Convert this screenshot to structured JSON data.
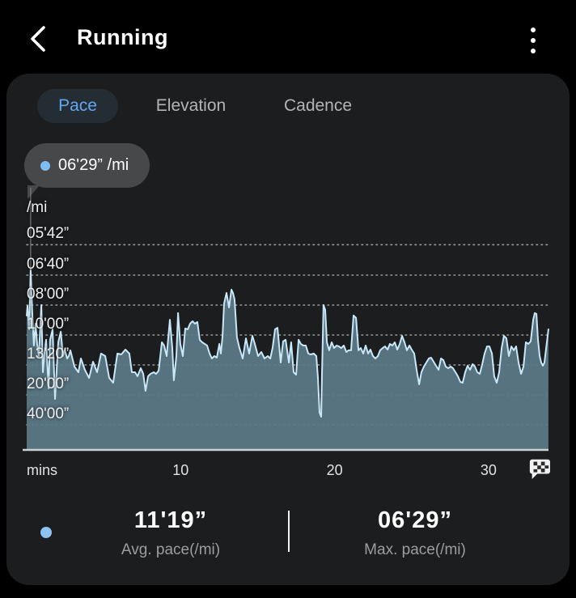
{
  "header": {
    "title": "Running"
  },
  "tabs": [
    {
      "label": "Pace",
      "active": true
    },
    {
      "label": "Elevation",
      "active": false
    },
    {
      "label": "Cadence",
      "active": false
    }
  ],
  "tooltip": {
    "value": "06'29” /mi"
  },
  "chart_data": {
    "type": "area",
    "title": "Pace over workout time",
    "ylabel": "/mi",
    "xlabel": "mins",
    "legend_position": "none",
    "grid": "dotted-horizontal",
    "x_range_minutes": [
      0,
      33.9
    ],
    "x_ticks": [
      {
        "label": "10",
        "minute": 10
      },
      {
        "label": "20",
        "minute": 20
      },
      {
        "label": "30",
        "minute": 30
      }
    ],
    "y_ticks": [
      {
        "label": "05'42”",
        "pace_s": 342
      },
      {
        "label": "06'40”",
        "pace_s": 400
      },
      {
        "label": "08'00”",
        "pace_s": 480
      },
      {
        "label": "10'00”",
        "pace_s": 600
      },
      {
        "label": "13'20”",
        "pace_s": 800
      },
      {
        "label": "20'00”",
        "pace_s": 1200
      },
      {
        "label": "40'00”",
        "pace_s": 2400
      }
    ],
    "points": [
      [
        0.0,
        516
      ],
      [
        0.05,
        483
      ],
      [
        0.16,
        573
      ],
      [
        0.26,
        388
      ],
      [
        0.37,
        516
      ],
      [
        0.47,
        658
      ],
      [
        0.58,
        548
      ],
      [
        0.68,
        648
      ],
      [
        0.79,
        728
      ],
      [
        0.95,
        480
      ],
      [
        1.05,
        871
      ],
      [
        1.16,
        699
      ],
      [
        1.26,
        625
      ],
      [
        1.42,
        1083
      ],
      [
        1.52,
        625
      ],
      [
        1.68,
        573
      ],
      [
        1.84,
        1287
      ],
      [
        1.94,
        871
      ],
      [
        2.05,
        639
      ],
      [
        2.21,
        584
      ],
      [
        2.36,
        728
      ],
      [
        2.47,
        683
      ],
      [
        2.63,
        746
      ],
      [
        2.73,
        728
      ],
      [
        2.84,
        688
      ],
      [
        3.1,
        815
      ],
      [
        3.36,
        871
      ],
      [
        3.52,
        746
      ],
      [
        3.78,
        846
      ],
      [
        4.05,
        935
      ],
      [
        4.31,
        772
      ],
      [
        4.57,
        871
      ],
      [
        4.83,
        710
      ],
      [
        5.1,
        728
      ],
      [
        5.36,
        935
      ],
      [
        5.62,
        998
      ],
      [
        5.89,
        710
      ],
      [
        6.15,
        716
      ],
      [
        6.41,
        683
      ],
      [
        6.67,
        710
      ],
      [
        6.83,
        871
      ],
      [
        7.04,
        871
      ],
      [
        7.2,
        915
      ],
      [
        7.41,
        830
      ],
      [
        7.57,
        888
      ],
      [
        7.72,
        1124
      ],
      [
        7.88,
        915
      ],
      [
        8.04,
        888
      ],
      [
        8.25,
        871
      ],
      [
        8.41,
        888
      ],
      [
        8.57,
        854
      ],
      [
        8.78,
        639
      ],
      [
        8.93,
        658
      ],
      [
        9.09,
        728
      ],
      [
        9.3,
        532
      ],
      [
        9.46,
        673
      ],
      [
        9.56,
        965
      ],
      [
        9.72,
        728
      ],
      [
        9.83,
        507
      ],
      [
        9.98,
        648
      ],
      [
        10.14,
        728
      ],
      [
        10.3,
        569
      ],
      [
        10.46,
        573
      ],
      [
        10.61,
        548
      ],
      [
        10.77,
        538
      ],
      [
        10.93,
        548
      ],
      [
        11.09,
        541
      ],
      [
        11.24,
        625
      ],
      [
        11.4,
        639
      ],
      [
        11.56,
        648
      ],
      [
        11.72,
        658
      ],
      [
        11.88,
        710
      ],
      [
        12.03,
        746
      ],
      [
        12.19,
        728
      ],
      [
        12.35,
        740
      ],
      [
        12.51,
        648
      ],
      [
        12.61,
        710
      ],
      [
        12.72,
        604
      ],
      [
        12.82,
        475
      ],
      [
        12.98,
        444
      ],
      [
        13.14,
        488
      ],
      [
        13.3,
        435
      ],
      [
        13.4,
        444
      ],
      [
        13.5,
        462
      ],
      [
        13.66,
        612
      ],
      [
        13.82,
        673
      ],
      [
        14.03,
        746
      ],
      [
        14.24,
        617
      ],
      [
        14.45,
        710
      ],
      [
        14.66,
        604
      ],
      [
        14.82,
        648
      ],
      [
        15.03,
        728
      ],
      [
        15.24,
        699
      ],
      [
        15.45,
        746
      ],
      [
        15.66,
        728
      ],
      [
        15.82,
        746
      ],
      [
        15.97,
        673
      ],
      [
        16.13,
        573
      ],
      [
        16.29,
        566
      ],
      [
        16.5,
        779
      ],
      [
        16.66,
        634
      ],
      [
        16.82,
        625
      ],
      [
        17.03,
        779
      ],
      [
        17.18,
        639
      ],
      [
        17.34,
        871
      ],
      [
        17.5,
        897
      ],
      [
        17.66,
        625
      ],
      [
        17.81,
        648
      ],
      [
        17.97,
        658
      ],
      [
        18.13,
        658
      ],
      [
        18.29,
        710
      ],
      [
        18.44,
        716
      ],
      [
        18.65,
        710
      ],
      [
        18.81,
        728
      ],
      [
        18.92,
        935
      ],
      [
        19.02,
        1707
      ],
      [
        19.13,
        1889
      ],
      [
        19.18,
        897
      ],
      [
        19.28,
        480
      ],
      [
        19.39,
        496
      ],
      [
        19.5,
        639
      ],
      [
        19.65,
        688
      ],
      [
        19.81,
        639
      ],
      [
        19.97,
        673
      ],
      [
        20.13,
        658
      ],
      [
        20.28,
        663
      ],
      [
        20.44,
        673
      ],
      [
        20.6,
        658
      ],
      [
        20.76,
        699
      ],
      [
        20.91,
        688
      ],
      [
        21.07,
        688
      ],
      [
        21.23,
        516
      ],
      [
        21.39,
        525
      ],
      [
        21.55,
        688
      ],
      [
        21.7,
        673
      ],
      [
        21.86,
        710
      ],
      [
        22.02,
        658
      ],
      [
        22.18,
        710
      ],
      [
        22.33,
        683
      ],
      [
        22.49,
        728
      ],
      [
        22.65,
        746
      ],
      [
        22.81,
        728
      ],
      [
        22.96,
        688
      ],
      [
        23.12,
        673
      ],
      [
        23.28,
        663
      ],
      [
        23.44,
        683
      ],
      [
        23.59,
        648
      ],
      [
        23.75,
        658
      ],
      [
        23.91,
        639
      ],
      [
        24.07,
        683
      ],
      [
        24.23,
        648
      ],
      [
        24.38,
        604
      ],
      [
        24.54,
        639
      ],
      [
        24.7,
        688
      ],
      [
        24.86,
        658
      ],
      [
        25.01,
        683
      ],
      [
        25.17,
        710
      ],
      [
        25.33,
        846
      ],
      [
        25.49,
        1021
      ],
      [
        25.64,
        871
      ],
      [
        25.8,
        815
      ],
      [
        25.96,
        779
      ],
      [
        26.12,
        746
      ],
      [
        26.27,
        740
      ],
      [
        26.43,
        772
      ],
      [
        26.59,
        807
      ],
      [
        26.75,
        846
      ],
      [
        26.91,
        746
      ],
      [
        27.06,
        759
      ],
      [
        27.22,
        815
      ],
      [
        27.38,
        830
      ],
      [
        27.54,
        815
      ],
      [
        27.69,
        830
      ],
      [
        27.85,
        871
      ],
      [
        28.01,
        915
      ],
      [
        28.17,
        987
      ],
      [
        28.32,
        998
      ],
      [
        28.48,
        871
      ],
      [
        28.64,
        807
      ],
      [
        28.8,
        846
      ],
      [
        28.96,
        793
      ],
      [
        29.11,
        815
      ],
      [
        29.27,
        871
      ],
      [
        29.43,
        888
      ],
      [
        29.59,
        793
      ],
      [
        29.74,
        710
      ],
      [
        29.9,
        663
      ],
      [
        30.06,
        663
      ],
      [
        30.22,
        710
      ],
      [
        30.37,
        915
      ],
      [
        30.53,
        998
      ],
      [
        30.69,
        871
      ],
      [
        30.85,
        673
      ],
      [
        31.0,
        604
      ],
      [
        31.16,
        617
      ],
      [
        31.32,
        728
      ],
      [
        31.48,
        663
      ],
      [
        31.64,
        688
      ],
      [
        31.79,
        663
      ],
      [
        31.95,
        779
      ],
      [
        32.11,
        888
      ],
      [
        32.27,
        815
      ],
      [
        32.42,
        639
      ],
      [
        32.58,
        648
      ],
      [
        32.74,
        634
      ],
      [
        32.9,
        532
      ],
      [
        33.0,
        507
      ],
      [
        33.11,
        510
      ],
      [
        33.21,
        625
      ],
      [
        33.32,
        728
      ],
      [
        33.42,
        779
      ],
      [
        33.53,
        807
      ],
      [
        33.63,
        779
      ],
      [
        33.74,
        673
      ],
      [
        33.84,
        604
      ],
      [
        33.89,
        573
      ]
    ],
    "marker": {
      "minute": 0.26,
      "pace_s": 388,
      "label": "06'29” /mi"
    }
  },
  "stats": {
    "avg": {
      "value": "11'19”",
      "label": "Avg. pace(/mi)"
    },
    "max": {
      "value": "06'29”",
      "label": "Max. pace(/mi)"
    }
  },
  "colors": {
    "accent_blue": "#64a5ef",
    "legend_dot": "#8cc3f0",
    "area_fill": "#5c7b89",
    "line": "#c8e7f8",
    "card_bg": "#1b1d1f",
    "tooltip_bg": "#464849"
  }
}
